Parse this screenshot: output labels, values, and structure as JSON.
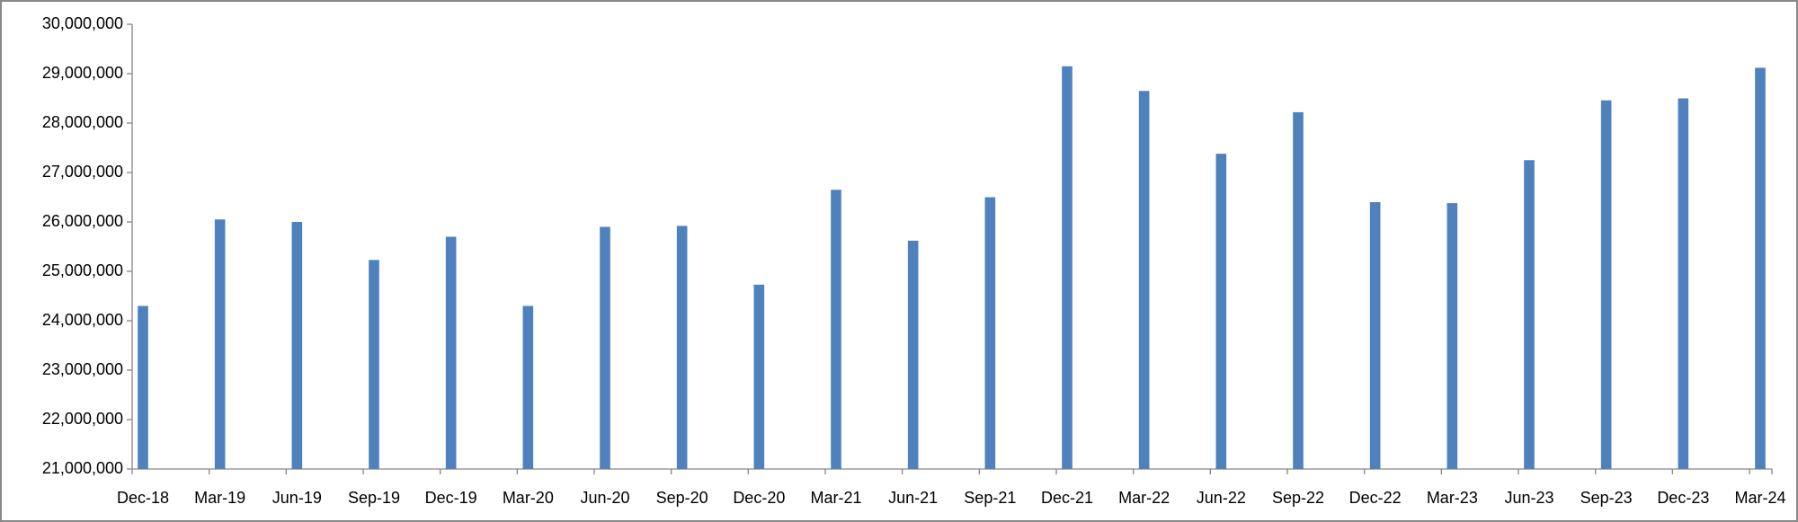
{
  "chart_data": {
    "type": "bar",
    "categories": [
      "Dec-18",
      "Mar-19",
      "Jun-19",
      "Sep-19",
      "Dec-19",
      "Mar-20",
      "Jun-20",
      "Sep-20",
      "Dec-20",
      "Mar-21",
      "Jun-21",
      "Sep-21",
      "Dec-21",
      "Mar-22",
      "Jun-22",
      "Sep-22",
      "Dec-22",
      "Mar-23",
      "Jun-23",
      "Sep-23",
      "Dec-23",
      "Mar-24"
    ],
    "values": [
      24300000,
      26050000,
      26000000,
      25230000,
      25700000,
      24300000,
      25900000,
      25920000,
      24730000,
      26650000,
      25620000,
      26500000,
      29150000,
      28650000,
      27380000,
      28220000,
      26400000,
      26380000,
      27250000,
      28460000,
      28500000,
      29120000
    ],
    "color": "#4f81bd",
    "ylim": [
      21000000,
      30000000
    ],
    "yticks": [
      {
        "value": 21000000,
        "label": "21,000,000"
      },
      {
        "value": 22000000,
        "label": "22,000,000"
      },
      {
        "value": 23000000,
        "label": "23,000,000"
      },
      {
        "value": 24000000,
        "label": "24,000,000"
      },
      {
        "value": 25000000,
        "label": "25,000,000"
      },
      {
        "value": 26000000,
        "label": "26,000,000"
      },
      {
        "value": 27000000,
        "label": "27,000,000"
      },
      {
        "value": 28000000,
        "label": "28,000,000"
      },
      {
        "value": 29000000,
        "label": "29,000,000"
      },
      {
        "value": 30000000,
        "label": "30,000,000"
      }
    ],
    "grid": false
  }
}
